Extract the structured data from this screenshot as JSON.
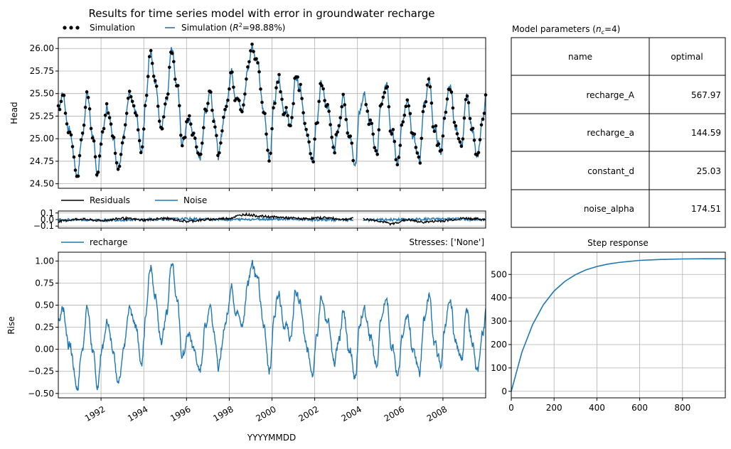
{
  "figure": {
    "title": "Results for time series model with error in groundwater recharge",
    "xlabel": "YYYYMMDD"
  },
  "colors": {
    "blue": "#1f77b4",
    "black": "#000000",
    "grid": "#b0b0b0"
  },
  "head_panel": {
    "ylabel": "Head",
    "legend": {
      "observed": "Simulation",
      "simulation_prefix": "Simulation (",
      "r2_symbol": "R",
      "r2_exp": "2",
      "r2_suffix": "=98.88%)"
    },
    "ylim": [
      24.45,
      26.12
    ],
    "yticks": [
      "24.50",
      "24.75",
      "25.00",
      "25.25",
      "25.50",
      "25.75",
      "26.00"
    ]
  },
  "residual_panel": {
    "legend": [
      "Residuals",
      "Noise"
    ],
    "ylim": [
      -0.13,
      0.13
    ],
    "yticks": [
      "−0.1",
      "0.0",
      "0.1"
    ]
  },
  "contribution_panel": {
    "ylabel": "Rise",
    "legend": "recharge",
    "stresses_label": "Stresses: ['None']",
    "ylim": [
      -0.55,
      1.1
    ],
    "yticks": [
      "−0.50",
      "−0.25",
      "0.00",
      "0.25",
      "0.50",
      "0.75",
      "1.00"
    ],
    "xticks": [
      "1992",
      "1994",
      "1996",
      "1998",
      "2000",
      "2002",
      "2004",
      "2006",
      "2008"
    ],
    "xlim": [
      1990.0,
      2010.0
    ]
  },
  "params_table": {
    "title_prefix": "Model parameters (",
    "title_n": "n",
    "title_sub": "c",
    "title_suffix": "=4)",
    "headers": [
      "name",
      "optimal"
    ],
    "rows": [
      {
        "name": "recharge_A",
        "optimal": "567.97"
      },
      {
        "name": "recharge_a",
        "optimal": "144.59"
      },
      {
        "name": "constant_d",
        "optimal": "25.03"
      },
      {
        "name": "noise_alpha",
        "optimal": "174.51"
      }
    ]
  },
  "step_panel": {
    "title": "Step response",
    "xlim": [
      0,
      1000
    ],
    "ylim": [
      -28,
      595
    ],
    "xticks": [
      "0",
      "200",
      "400",
      "600",
      "800"
    ],
    "yticks": [
      "0",
      "100",
      "200",
      "300",
      "400",
      "500"
    ]
  },
  "chart_data": [
    {
      "type": "line",
      "title": "Results for time series model with error in groundwater recharge",
      "ylabel": "Head",
      "xlim": [
        1990.0,
        2010.0
      ],
      "ylim": [
        24.45,
        26.12
      ],
      "grid": true,
      "legend_placement": "top-left",
      "anchors": {
        "x": [
          1990.0,
          1990.2,
          1990.5,
          1990.9,
          1991.1,
          1991.35,
          1991.6,
          1991.8,
          1992.1,
          1992.3,
          1992.5,
          1992.8,
          1993.1,
          1993.35,
          1993.6,
          1993.9,
          1994.1,
          1994.3,
          1994.55,
          1994.8,
          1995.1,
          1995.3,
          1995.55,
          1995.8,
          1996.1,
          1996.4,
          1996.6,
          1996.9,
          1997.1,
          1997.3,
          1997.5,
          1997.8,
          1998.1,
          1998.3,
          1998.6,
          1998.9,
          1999.05,
          1999.3,
          1999.6,
          1999.9,
          2000.1,
          2000.3,
          2000.6,
          2000.9,
          2001.1,
          2001.3,
          2001.6,
          2001.9,
          2002.1,
          2002.3,
          2002.6,
          2002.9,
          2003.1,
          2003.35,
          2003.6,
          2003.9,
          2004.1,
          2004.3,
          2004.6,
          2004.9,
          2005.1,
          2005.35,
          2005.6,
          2005.9,
          2006.1,
          2006.35,
          2006.6,
          2006.9,
          2007.1,
          2007.35,
          2007.6,
          2007.9,
          2008.1,
          2008.35,
          2008.6,
          2008.9,
          2009.1,
          2009.35,
          2009.6,
          2009.85,
          2010.0
        ],
        "y": [
          25.35,
          25.5,
          25.1,
          24.6,
          25.0,
          25.5,
          25.05,
          24.6,
          25.1,
          25.35,
          25.1,
          24.7,
          25.1,
          25.55,
          25.3,
          24.8,
          25.4,
          25.95,
          25.65,
          25.1,
          25.5,
          26.05,
          25.6,
          24.95,
          25.2,
          25.0,
          24.75,
          25.3,
          25.55,
          25.25,
          24.8,
          25.3,
          25.75,
          25.5,
          25.3,
          25.8,
          26.05,
          25.85,
          25.3,
          24.8,
          25.4,
          25.7,
          25.3,
          25.15,
          25.7,
          25.55,
          25.05,
          24.8,
          25.25,
          25.6,
          25.35,
          24.85,
          25.1,
          25.45,
          25.05,
          24.75,
          25.3,
          25.5,
          25.15,
          24.85,
          25.35,
          25.6,
          25.05,
          24.75,
          25.2,
          25.45,
          25.0,
          24.75,
          25.35,
          25.65,
          25.1,
          24.85,
          25.3,
          25.55,
          25.1,
          24.95,
          25.45,
          25.15,
          24.75,
          25.2,
          25.45
        ]
      },
      "series": [
        {
          "name": "Simulation",
          "style": "dots",
          "color": "#000000"
        },
        {
          "name": "Simulation (R²=98.88%)",
          "style": "line",
          "color": "#1f77b4"
        }
      ]
    },
    {
      "type": "line",
      "xlim": [
        1990.0,
        2010.0
      ],
      "ylim": [
        -0.13,
        0.13
      ],
      "grid": true,
      "series": [
        {
          "name": "Residuals",
          "color": "#000000",
          "x": [
            1990.0,
            1991.0,
            1992.0,
            1993.0,
            1994.0,
            1995.0,
            1996.0,
            1997.0,
            1998.0,
            1998.7,
            1999.5,
            2000.5,
            2001.5,
            2002.5,
            2003.3,
            2004.0,
            2005.0,
            2005.6,
            2006.3,
            2007.0,
            2008.0,
            2009.0,
            2010.0
          ],
          "y": [
            -0.03,
            0.01,
            -0.02,
            0.02,
            -0.01,
            0.02,
            -0.03,
            0.0,
            0.02,
            0.08,
            0.05,
            0.03,
            0.01,
            0.03,
            0.0,
            0.02,
            -0.02,
            -0.07,
            0.0,
            -0.04,
            -0.02,
            0.02,
            0.0
          ]
        },
        {
          "name": "Noise",
          "color": "#1f77b4",
          "x": [
            1990.0,
            1992.0,
            1994.0,
            1996.0,
            1998.0,
            2000.0,
            2002.0,
            2004.0,
            2006.0,
            2008.0,
            2010.0
          ],
          "y": [
            0.0,
            -0.01,
            0.0,
            0.01,
            0.0,
            0.01,
            0.0,
            -0.01,
            0.0,
            0.01,
            0.0
          ]
        }
      ]
    },
    {
      "type": "line",
      "ylabel": "Rise",
      "xlabel": "YYYYMMDD",
      "xlim": [
        1990.0,
        2010.0
      ],
      "ylim": [
        -0.55,
        1.1
      ],
      "grid": true,
      "legend_placement": "top-left",
      "series": [
        {
          "name": "recharge",
          "color": "#1f77b4",
          "offset_from_head": 25.03
        }
      ]
    },
    {
      "type": "table",
      "title": "Model parameters (n_c=4)",
      "columns": [
        "name",
        "optimal"
      ],
      "rows": [
        [
          "recharge_A",
          567.97
        ],
        [
          "recharge_a",
          144.59
        ],
        [
          "constant_d",
          25.03
        ],
        [
          "noise_alpha",
          174.51
        ]
      ]
    },
    {
      "type": "line",
      "title": "Step response",
      "xlim": [
        0,
        1000
      ],
      "ylim": [
        -28,
        595
      ],
      "grid": true,
      "series": [
        {
          "name": "",
          "color": "#1f77b4",
          "x": [
            0,
            50,
            100,
            150,
            200,
            250,
            300,
            350,
            400,
            450,
            500,
            600,
            700,
            800,
            900,
            1000
          ],
          "y": [
            0,
            168,
            286,
            370,
            429,
            470,
            499,
            520,
            534,
            544,
            551,
            560,
            564,
            566,
            567,
            567
          ]
        }
      ]
    }
  ]
}
